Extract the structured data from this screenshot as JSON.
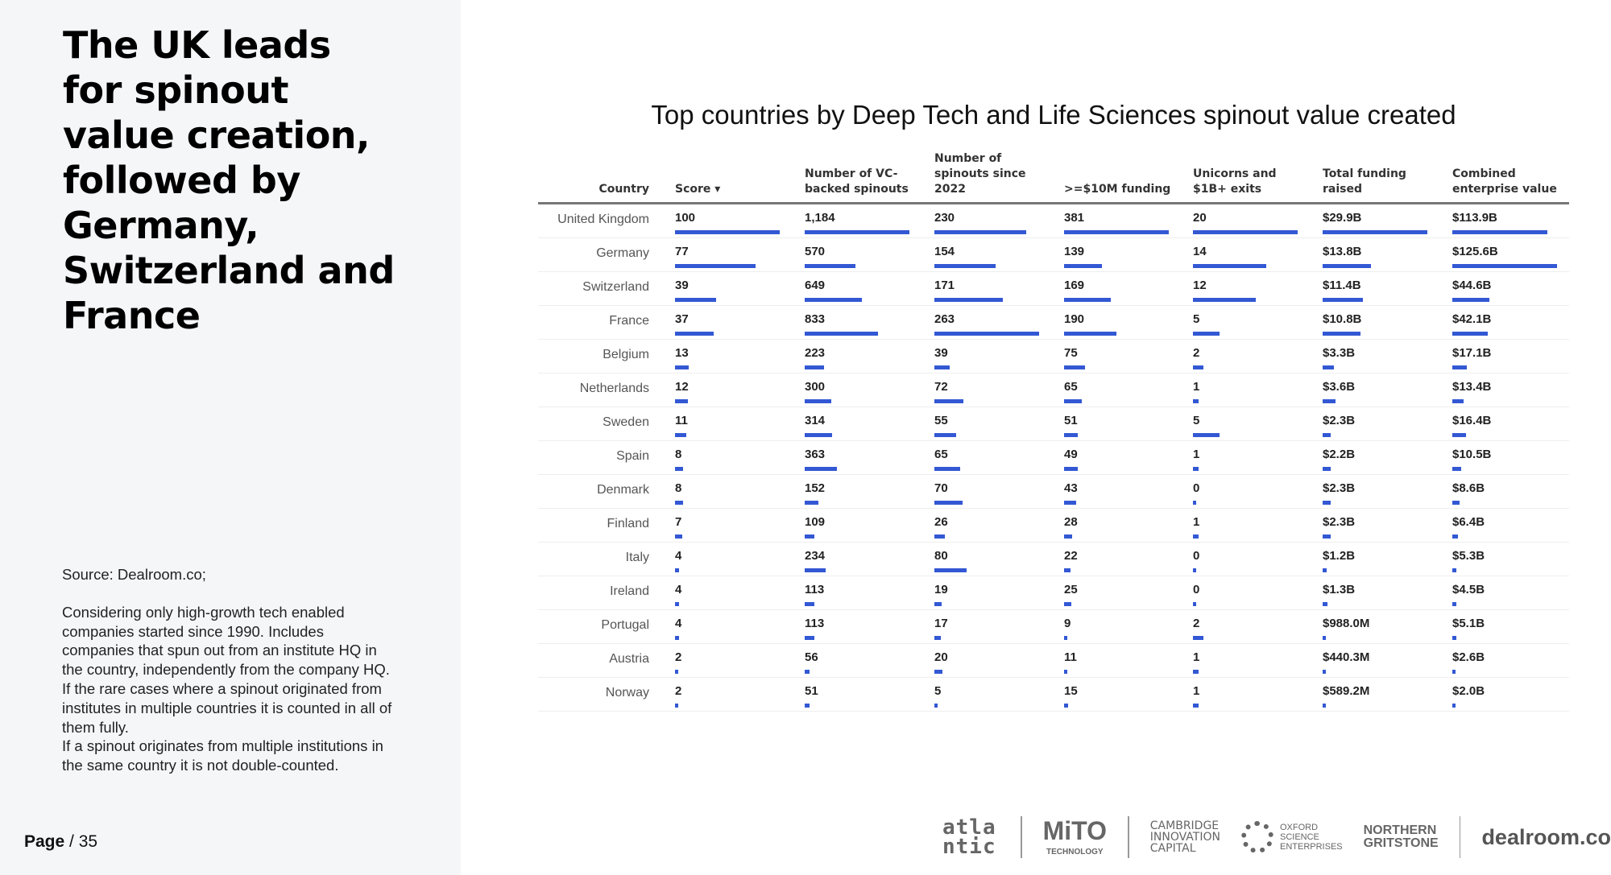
{
  "slide": {
    "title": "The UK leads for spinout value creation, followed by Germany, Switzerland and France",
    "source": "Source: Dealroom.co;",
    "note": "Considering only high-growth tech enabled companies started since 1990. Includes companies that spun out from an institute HQ in the country, independently from the company HQ. If the rare cases where a spinout originated from institutes in multiple countries it is counted in all of them fully.",
    "note2": "If a spinout originates from multiple institutions in the same country it is not double-counted.",
    "page_label": "Page",
    "page_number": "/ 35"
  },
  "table": {
    "title": "Top countries by Deep Tech and Life Sciences spinout value created",
    "bar_color": "#3358d4",
    "sort_icon": "sort-down-icon",
    "headers": [
      "Country",
      "Score ▾",
      "Number of VC-backed spinouts",
      "Number of spinouts since 2022",
      ">=$10M funding",
      "Unicorns and $1B+ exits",
      "Total funding raised",
      "Combined enterprise value"
    ],
    "rows": [
      [
        "United Kingdom",
        "100",
        "1,184",
        "230",
        "381",
        "20",
        "$29.9B",
        "$113.9B"
      ],
      [
        "Germany",
        "77",
        "570",
        "154",
        "139",
        "14",
        "$13.8B",
        "$125.6B"
      ],
      [
        "Switzerland",
        "39",
        "649",
        "171",
        "169",
        "12",
        "$11.4B",
        "$44.6B"
      ],
      [
        "France",
        "37",
        "833",
        "263",
        "190",
        "5",
        "$10.8B",
        "$42.1B"
      ],
      [
        "Belgium",
        "13",
        "223",
        "39",
        "75",
        "2",
        "$3.3B",
        "$17.1B"
      ],
      [
        "Netherlands",
        "12",
        "300",
        "72",
        "65",
        "1",
        "$3.6B",
        "$13.4B"
      ],
      [
        "Sweden",
        "11",
        "314",
        "55",
        "51",
        "5",
        "$2.3B",
        "$16.4B"
      ],
      [
        "Spain",
        "8",
        "363",
        "65",
        "49",
        "1",
        "$2.2B",
        "$10.5B"
      ],
      [
        "Denmark",
        "8",
        "152",
        "70",
        "43",
        "0",
        "$2.3B",
        "$8.6B"
      ],
      [
        "Finland",
        "7",
        "109",
        "26",
        "28",
        "1",
        "$2.3B",
        "$6.4B"
      ],
      [
        "Italy",
        "4",
        "234",
        "80",
        "22",
        "0",
        "$1.2B",
        "$5.3B"
      ],
      [
        "Ireland",
        "4",
        "113",
        "19",
        "25",
        "0",
        "$1.3B",
        "$4.5B"
      ],
      [
        "Portugal",
        "4",
        "113",
        "17",
        "9",
        "2",
        "$988.0M",
        "$5.1B"
      ],
      [
        "Austria",
        "2",
        "56",
        "20",
        "11",
        "1",
        "$440.3M",
        "$2.6B"
      ],
      [
        "Norway",
        "2",
        "51",
        "5",
        "15",
        "1",
        "$589.2M",
        "$2.0B"
      ]
    ]
  },
  "logos": [
    "atlantic",
    "MITO TECHNOLOGY",
    "CAMBRIDGE INNOVATION CAPITAL",
    "OXFORD SCIENCE ENTERPRISES",
    "NORTHERN GRITSTONE",
    "dealroom.co"
  ]
}
